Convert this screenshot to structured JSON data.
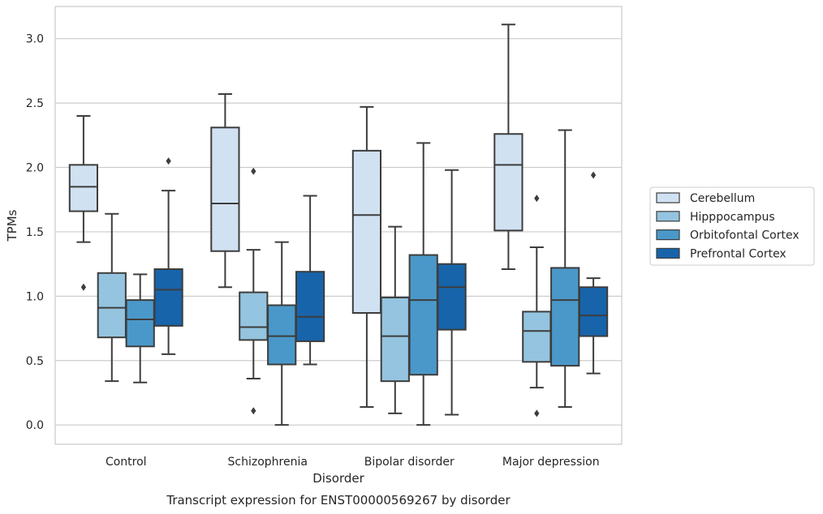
{
  "chart_data": {
    "type": "box",
    "title": "",
    "caption": "Transcript expression for ENST00000569267 by disorder",
    "xlabel": "Disorder",
    "ylabel": "TPMs",
    "ylim": [
      -0.15,
      3.25
    ],
    "yticks": [
      "0.0",
      "0.5",
      "1.0",
      "1.5",
      "2.0",
      "2.5",
      "3.0"
    ],
    "grid": "horizontal",
    "legend_position": "right",
    "categories": [
      "Control",
      "Schizophrenia",
      "Bipolar disorder",
      "Major depression"
    ],
    "series": [
      {
        "name": "Cerebellum",
        "color": "#d0e1f2",
        "boxes": [
          {
            "whisker_low": 1.42,
            "q1": 1.66,
            "median": 1.85,
            "q3": 2.02,
            "whisker_high": 2.4,
            "outliers": [
              1.07
            ]
          },
          {
            "whisker_low": 1.07,
            "q1": 1.35,
            "median": 1.72,
            "q3": 2.31,
            "whisker_high": 2.57,
            "outliers": []
          },
          {
            "whisker_low": 0.14,
            "q1": 0.87,
            "median": 1.63,
            "q3": 2.13,
            "whisker_high": 2.47,
            "outliers": []
          },
          {
            "whisker_low": 1.21,
            "q1": 1.51,
            "median": 2.02,
            "q3": 2.26,
            "whisker_high": 3.11,
            "outliers": []
          }
        ]
      },
      {
        "name": "Hipppocampus",
        "color": "#94c4df",
        "boxes": [
          {
            "whisker_low": 0.34,
            "q1": 0.68,
            "median": 0.91,
            "q3": 1.18,
            "whisker_high": 1.64,
            "outliers": []
          },
          {
            "whisker_low": 0.36,
            "q1": 0.66,
            "median": 0.76,
            "q3": 1.03,
            "whisker_high": 1.36,
            "outliers": [
              1.97,
              0.11
            ]
          },
          {
            "whisker_low": 0.09,
            "q1": 0.34,
            "median": 0.69,
            "q3": 0.99,
            "whisker_high": 1.54,
            "outliers": []
          },
          {
            "whisker_low": 0.29,
            "q1": 0.49,
            "median": 0.73,
            "q3": 0.88,
            "whisker_high": 1.38,
            "outliers": [
              1.76,
              0.09
            ]
          }
        ]
      },
      {
        "name": "Orbitofontal Cortex",
        "color": "#4a98c9",
        "boxes": [
          {
            "whisker_low": 0.33,
            "q1": 0.61,
            "median": 0.82,
            "q3": 0.97,
            "whisker_high": 1.17,
            "outliers": []
          },
          {
            "whisker_low": 0.0,
            "q1": 0.47,
            "median": 0.69,
            "q3": 0.93,
            "whisker_high": 1.42,
            "outliers": []
          },
          {
            "whisker_low": 0.0,
            "q1": 0.39,
            "median": 0.97,
            "q3": 1.32,
            "whisker_high": 2.19,
            "outliers": []
          },
          {
            "whisker_low": 0.14,
            "q1": 0.46,
            "median": 0.97,
            "q3": 1.22,
            "whisker_high": 2.29,
            "outliers": []
          }
        ]
      },
      {
        "name": "Prefrontal Cortex",
        "color": "#1764ab",
        "boxes": [
          {
            "whisker_low": 0.55,
            "q1": 0.77,
            "median": 1.05,
            "q3": 1.21,
            "whisker_high": 1.82,
            "outliers": [
              2.05
            ]
          },
          {
            "whisker_low": 0.47,
            "q1": 0.65,
            "median": 0.84,
            "q3": 1.19,
            "whisker_high": 1.78,
            "outliers": []
          },
          {
            "whisker_low": 0.08,
            "q1": 0.74,
            "median": 1.07,
            "q3": 1.25,
            "whisker_high": 1.98,
            "outliers": []
          },
          {
            "whisker_low": 0.4,
            "q1": 0.69,
            "median": 0.85,
            "q3": 1.07,
            "whisker_high": 1.14,
            "outliers": [
              1.94
            ]
          }
        ]
      }
    ]
  }
}
